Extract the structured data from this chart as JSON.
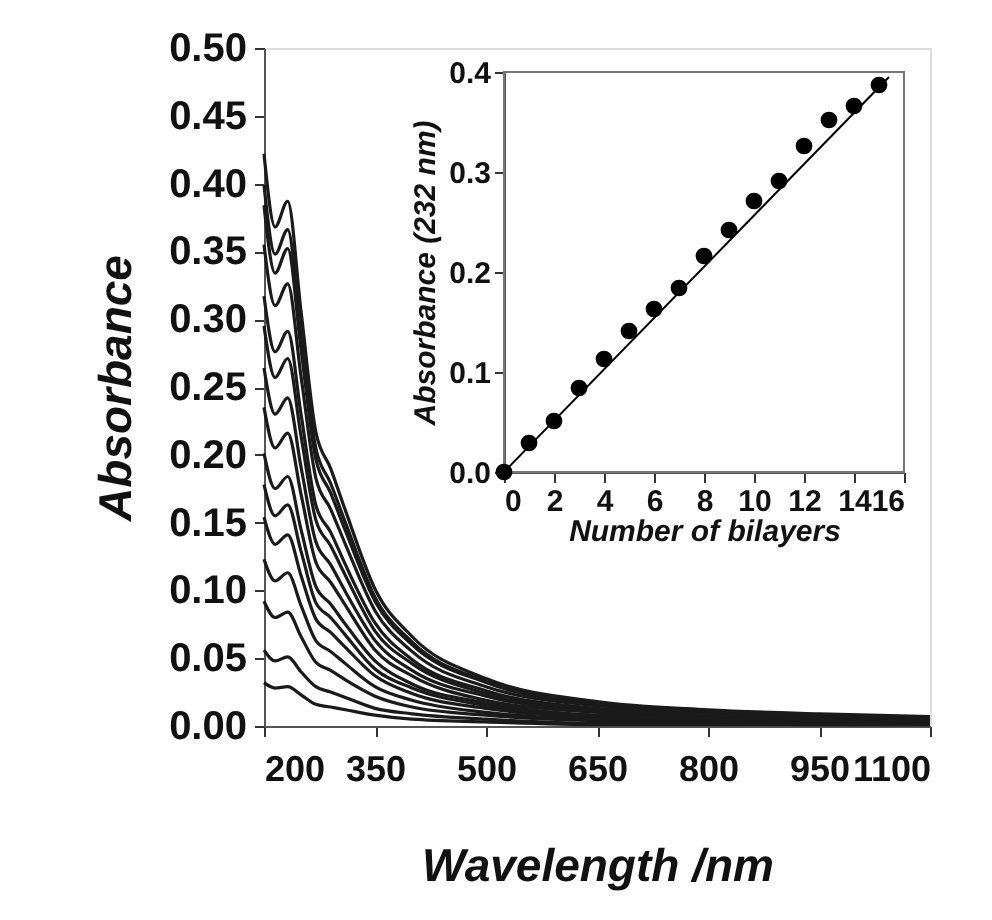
{
  "chart_data": [
    {
      "type": "line",
      "xlabel": "Wavelength /nm",
      "ylabel": "Absorbance",
      "x": [
        200,
        215,
        232,
        250,
        270,
        290,
        310,
        350,
        400,
        500,
        650,
        800,
        950,
        1100
      ],
      "series": [
        {
          "color": "#1a1a1a",
          "values": [
            0.032,
            0.028,
            0.029,
            0.023,
            0.016,
            0.014,
            0.012,
            0.008,
            0.005,
            0.003,
            0.001,
            0.001,
            0.001,
            0.001
          ]
        },
        {
          "color": "#1a1a1a",
          "values": [
            0.056,
            0.048,
            0.051,
            0.04,
            0.029,
            0.025,
            0.021,
            0.013,
            0.009,
            0.005,
            0.002,
            0.002,
            0.001,
            0.001
          ]
        },
        {
          "color": "#1a1a1a",
          "values": [
            0.092,
            0.08,
            0.084,
            0.066,
            0.047,
            0.041,
            0.034,
            0.022,
            0.014,
            0.008,
            0.004,
            0.003,
            0.002,
            0.002
          ]
        },
        {
          "color": "#1a1a1a",
          "values": [
            0.123,
            0.107,
            0.113,
            0.089,
            0.063,
            0.055,
            0.046,
            0.029,
            0.019,
            0.01,
            0.005,
            0.004,
            0.003,
            0.002
          ]
        },
        {
          "color": "#1a1a1a",
          "values": [
            0.154,
            0.134,
            0.141,
            0.111,
            0.079,
            0.069,
            0.058,
            0.037,
            0.024,
            0.013,
            0.006,
            0.004,
            0.003,
            0.003
          ]
        },
        {
          "color": "#1a1a1a",
          "values": [
            0.178,
            0.155,
            0.163,
            0.129,
            0.091,
            0.08,
            0.067,
            0.042,
            0.028,
            0.015,
            0.007,
            0.005,
            0.004,
            0.003
          ]
        },
        {
          "color": "#1a1a1a",
          "values": [
            0.201,
            0.175,
            0.184,
            0.145,
            0.103,
            0.09,
            0.075,
            0.048,
            0.031,
            0.017,
            0.008,
            0.006,
            0.004,
            0.003
          ]
        },
        {
          "color": "#1a1a1a",
          "values": [
            0.235,
            0.205,
            0.216,
            0.171,
            0.121,
            0.106,
            0.089,
            0.056,
            0.037,
            0.019,
            0.01,
            0.007,
            0.005,
            0.004
          ]
        },
        {
          "color": "#1a1a1a",
          "values": [
            0.264,
            0.23,
            0.242,
            0.191,
            0.136,
            0.119,
            0.099,
            0.063,
            0.041,
            0.022,
            0.011,
            0.008,
            0.006,
            0.004
          ]
        },
        {
          "color": "#1a1a1a",
          "values": [
            0.295,
            0.257,
            0.271,
            0.214,
            0.152,
            0.133,
            0.111,
            0.07,
            0.046,
            0.024,
            0.012,
            0.008,
            0.006,
            0.005
          ]
        },
        {
          "color": "#1a1a1a",
          "values": [
            0.317,
            0.276,
            0.291,
            0.23,
            0.163,
            0.143,
            0.119,
            0.076,
            0.049,
            0.026,
            0.013,
            0.009,
            0.007,
            0.005
          ]
        },
        {
          "color": "#1a1a1a",
          "values": [
            0.355,
            0.31,
            0.326,
            0.258,
            0.183,
            0.16,
            0.134,
            0.085,
            0.055,
            0.029,
            0.015,
            0.01,
            0.007,
            0.006
          ]
        },
        {
          "color": "#1a1a1a",
          "values": [
            0.384,
            0.334,
            0.352,
            0.278,
            0.197,
            0.172,
            0.144,
            0.092,
            0.06,
            0.032,
            0.016,
            0.011,
            0.008,
            0.006
          ]
        },
        {
          "color": "#1a1a1a",
          "values": [
            0.399,
            0.348,
            0.366,
            0.289,
            0.205,
            0.179,
            0.15,
            0.095,
            0.062,
            0.033,
            0.017,
            0.011,
            0.008,
            0.006
          ]
        },
        {
          "color": "#1a1a1a",
          "values": [
            0.422,
            0.368,
            0.387,
            0.306,
            0.217,
            0.19,
            0.159,
            0.101,
            0.066,
            0.035,
            0.018,
            0.012,
            0.009,
            0.007
          ]
        }
      ],
      "xlim": [
        200,
        1100
      ],
      "xticks": [
        200,
        350,
        500,
        650,
        800,
        950,
        1100
      ],
      "ylim": [
        0,
        0.5
      ],
      "yticks": [
        {
          "value": 0,
          "label": "0.00"
        },
        0.05,
        {
          "value": 0.1,
          "label": "0.10"
        },
        0.15,
        {
          "value": 0.2,
          "label": "0.20"
        },
        0.25,
        {
          "value": 0.3,
          "label": "0.30"
        },
        0.35,
        {
          "value": 0.4,
          "label": "0.40"
        },
        0.45,
        {
          "value": 0.5,
          "label": "0.50"
        }
      ],
      "grid": false
    },
    {
      "type": "scatter",
      "xlabel": "Number of bilayers",
      "ylabel": "Absorbance (232 nm)",
      "series": [
        {
          "type": "scatter",
          "marker": "circle",
          "color": "#000000",
          "x": [
            0,
            1,
            2,
            3,
            4,
            5,
            6,
            7,
            8,
            9,
            10,
            11,
            12,
            13,
            14,
            15
          ],
          "values": [
            0,
            0.029,
            0.051,
            0.084,
            0.113,
            0.141,
            0.163,
            0.184,
            0.216,
            0.242,
            0.271,
            0.291,
            0.326,
            0.352,
            0.366,
            0.387
          ]
        },
        {
          "type": "line",
          "color": "#000000",
          "x": [
            0,
            15.4
          ],
          "values": [
            0,
            0.395
          ]
        }
      ],
      "xlim": [
        0,
        16
      ],
      "xticks": [
        0,
        2,
        4,
        6,
        8,
        10,
        12,
        14,
        16
      ],
      "ylim": [
        0,
        0.4
      ],
      "yticks": [
        {
          "value": 0,
          "label": "0.0"
        },
        0.1,
        0.2,
        0.3,
        0.4
      ],
      "grid": false
    }
  ]
}
